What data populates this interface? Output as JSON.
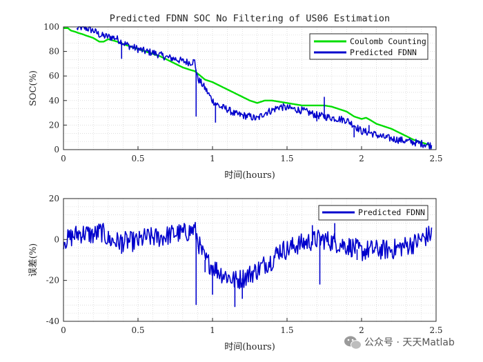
{
  "chart_data": [
    {
      "type": "line",
      "title": "Predicted FDNN SOC No Filtering of US06 Estimation",
      "xlabel": "时间(hours)",
      "ylabel": "SOC(%)",
      "xlim": [
        0,
        2.5
      ],
      "ylim": [
        0,
        100
      ],
      "xticks": [
        "0",
        "0.5",
        "1",
        "1.5",
        "2",
        "2.5"
      ],
      "yticks": [
        "0",
        "20",
        "40",
        "60",
        "80",
        "100"
      ],
      "grid": "minor dotted",
      "legend_position": "top-right",
      "series": [
        {
          "name": "Coulomb Counting",
          "color": "#00dd00",
          "noise": 0,
          "x": [
            0,
            0.03,
            0.05,
            0.08,
            0.1,
            0.13,
            0.15,
            0.2,
            0.24,
            0.27,
            0.3,
            0.33,
            0.36,
            0.4,
            0.45,
            0.5,
            0.55,
            0.6,
            0.65,
            0.7,
            0.75,
            0.8,
            0.85,
            0.88,
            0.9,
            0.95,
            1.0,
            1.05,
            1.1,
            1.15,
            1.2,
            1.25,
            1.3,
            1.35,
            1.4,
            1.45,
            1.5,
            1.55,
            1.6,
            1.65,
            1.7,
            1.75,
            1.8,
            1.85,
            1.9,
            1.95,
            2.0,
            2.03,
            2.06,
            2.1,
            2.15,
            2.2,
            2.25,
            2.3,
            2.35,
            2.4,
            2.45,
            2.47
          ],
          "y": [
            99,
            99,
            97,
            96,
            95,
            94,
            93,
            91,
            88,
            88,
            90,
            89,
            88,
            86,
            84,
            82,
            80,
            78,
            76,
            73,
            70,
            67,
            65,
            64,
            62,
            57,
            55,
            52,
            49,
            46,
            43,
            40,
            38,
            40,
            40,
            39,
            38,
            37,
            36,
            36,
            36,
            36,
            35,
            33,
            31,
            27,
            25,
            26,
            24,
            21,
            19,
            17,
            14,
            11,
            8,
            6,
            4,
            1
          ]
        },
        {
          "name": "Predicted FDNN",
          "color": "#0000cc",
          "noise": 3,
          "x": [
            0.09,
            0.1,
            0.15,
            0.2,
            0.25,
            0.3,
            0.35,
            0.4,
            0.45,
            0.5,
            0.55,
            0.6,
            0.65,
            0.7,
            0.75,
            0.8,
            0.85,
            0.88,
            0.9,
            0.92,
            0.95,
            1.0,
            1.05,
            1.1,
            1.15,
            1.2,
            1.25,
            1.3,
            1.35,
            1.4,
            1.45,
            1.5,
            1.55,
            1.6,
            1.65,
            1.7,
            1.75,
            1.8,
            1.85,
            1.9,
            1.95,
            2.0,
            2.05,
            2.1,
            2.15,
            2.2,
            2.25,
            2.3,
            2.35,
            2.4,
            2.45,
            2.47
          ],
          "y": [
            98,
            100,
            99,
            97,
            93,
            92,
            91,
            87,
            84,
            82,
            80,
            79,
            77,
            75,
            74,
            72,
            71,
            72,
            58,
            55,
            50,
            40,
            35,
            33,
            29,
            28,
            27,
            25,
            30,
            32,
            35,
            34,
            33,
            32,
            30,
            28,
            27,
            26,
            25,
            24,
            20,
            15,
            14,
            12,
            10,
            9,
            8,
            7,
            6,
            5,
            4,
            3
          ]
        }
      ],
      "spikes": [
        {
          "x": 0.39,
          "y": 74
        },
        {
          "x": 0.89,
          "y": 27
        },
        {
          "x": 0.93,
          "y": 53
        },
        {
          "x": 1.02,
          "y": 22
        },
        {
          "x": 1.58,
          "y": 30
        },
        {
          "x": 1.7,
          "y": 23
        },
        {
          "x": 1.75,
          "y": 43
        },
        {
          "x": 1.95,
          "y": 10
        },
        {
          "x": 2.05,
          "y": 20
        }
      ]
    },
    {
      "type": "line",
      "title": "",
      "xlabel": "时间(hours)",
      "ylabel": "误差(%)",
      "xlim": [
        0,
        2.5
      ],
      "ylim": [
        -40,
        20
      ],
      "xticks": [
        "0",
        "0.5",
        "1",
        "1.5",
        "2",
        "2.5"
      ],
      "yticks": [
        "-40",
        "-20",
        "0",
        "20"
      ],
      "grid": "minor dotted",
      "legend_position": "top-right",
      "series": [
        {
          "name": "Predicted FDNN",
          "color": "#0000cc",
          "noise": 5,
          "x": [
            0,
            0.03,
            0.05,
            0.1,
            0.15,
            0.2,
            0.25,
            0.28,
            0.3,
            0.35,
            0.38,
            0.4,
            0.45,
            0.5,
            0.55,
            0.6,
            0.65,
            0.7,
            0.75,
            0.8,
            0.85,
            0.88,
            0.9,
            0.92,
            0.95,
            1.0,
            1.05,
            1.1,
            1.15,
            1.2,
            1.25,
            1.3,
            1.35,
            1.4,
            1.45,
            1.5,
            1.55,
            1.6,
            1.65,
            1.7,
            1.75,
            1.8,
            1.85,
            1.9,
            1.95,
            2.0,
            2.05,
            2.1,
            2.15,
            2.2,
            2.25,
            2.3,
            2.35,
            2.4,
            2.45,
            2.47
          ],
          "y": [
            0,
            0,
            1,
            3,
            3,
            2,
            4,
            2,
            0,
            -1,
            -1,
            -1,
            -1,
            -1,
            1,
            1,
            1,
            2,
            3,
            3,
            4,
            5,
            0,
            -5,
            -10,
            -13,
            -16,
            -18,
            -20,
            -19,
            -17,
            -15,
            -12,
            -10,
            -5,
            -5,
            -3,
            -2,
            -1,
            0,
            0,
            -1,
            -2,
            -3,
            -4,
            -6,
            -5,
            -5,
            -5,
            -5,
            -4,
            -3,
            -2,
            0,
            2,
            3
          ]
        }
      ],
      "spikes": [
        {
          "x": 0.39,
          "y": -7
        },
        {
          "x": 0.89,
          "y": -32
        },
        {
          "x": 0.95,
          "y": -16
        },
        {
          "x": 1.0,
          "y": -27
        },
        {
          "x": 1.15,
          "y": -33
        },
        {
          "x": 1.2,
          "y": -29
        },
        {
          "x": 1.67,
          "y": 7
        },
        {
          "x": 1.72,
          "y": -22
        },
        {
          "x": 1.82,
          "y": 8
        },
        {
          "x": 1.97,
          "y": -10
        }
      ]
    }
  ],
  "watermark": {
    "text": "公众号 · 天天Matlab",
    "icon": "wechat-icon"
  }
}
